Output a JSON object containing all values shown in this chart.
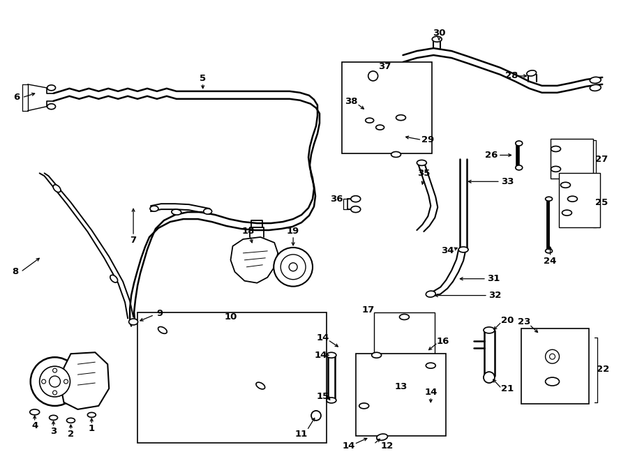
{
  "bg_color": "#ffffff",
  "line_color": "#000000",
  "fig_width": 9.0,
  "fig_height": 6.61,
  "lfs": 9.5
}
